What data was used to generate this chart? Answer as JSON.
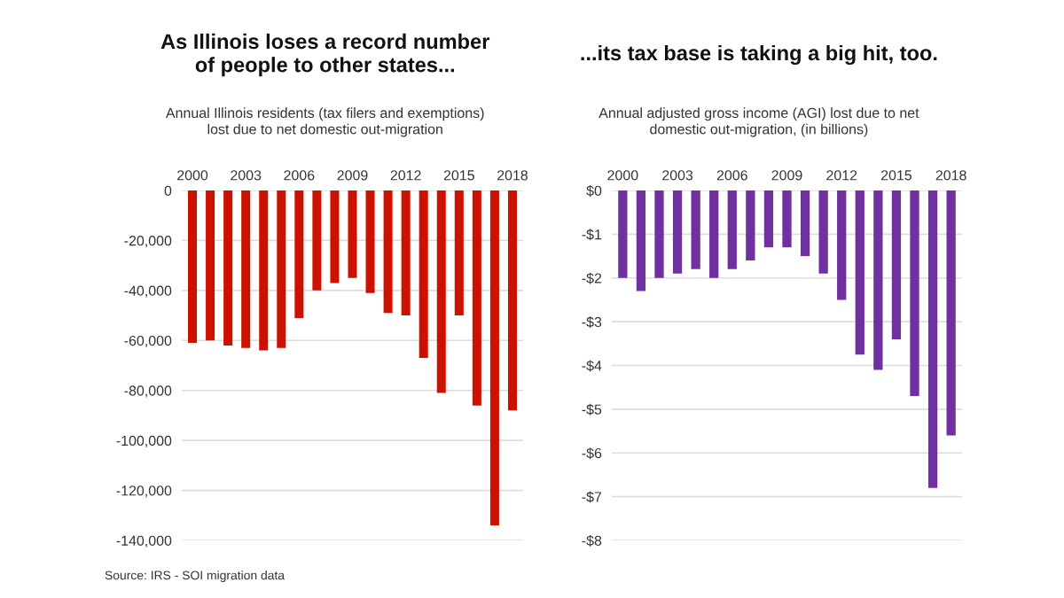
{
  "chart_data": [
    {
      "type": "bar",
      "title": "As Illinois loses a record number\nof people to other states...",
      "subtitle": "Annual Illinois residents (tax filers and exemptions)\nlost due to net domestic out-migration",
      "categories": [
        "2000",
        null,
        null,
        "2003",
        null,
        null,
        "2006",
        null,
        null,
        "2009",
        null,
        null,
        "2012",
        null,
        null,
        "2015",
        null,
        null,
        "2018"
      ],
      "values": [
        -61000,
        -60000,
        -62000,
        -63000,
        -64000,
        -63000,
        -51000,
        -40000,
        -37000,
        -35000,
        -41000,
        -49000,
        -50000,
        -67000,
        -81000,
        -50000,
        -86000,
        -134000,
        -88000
      ],
      "color": "#cc1100",
      "ylim": [
        -140000,
        0
      ],
      "yticks": [
        0,
        {
          "value": -20000,
          "label": "-20,000"
        },
        {
          "value": -40000,
          "label": "-40,000"
        },
        {
          "value": -60000,
          "label": "-60,000"
        },
        {
          "value": -80000,
          "label": "-80,000"
        },
        {
          "value": -100000,
          "label": "-100,000"
        },
        {
          "value": -120000,
          "label": "-120,000"
        },
        {
          "value": -140000,
          "label": "-140,000"
        }
      ],
      "grid": "y",
      "annotations": [
        "Source: IRS - SOI migration data"
      ]
    },
    {
      "type": "bar",
      "title": "...its tax base is taking a big hit, too.",
      "subtitle": "Annual adjusted gross income (AGI) lost due to net\ndomestic out-migration, (in billions)",
      "categories": [
        "2000",
        null,
        null,
        "2003",
        null,
        null,
        "2006",
        null,
        null,
        "2009",
        null,
        null,
        "2012",
        null,
        null,
        "2015",
        null,
        null,
        "2018"
      ],
      "values": [
        -2.0,
        -2.3,
        -2.0,
        -1.9,
        -1.8,
        -2.0,
        -1.8,
        -1.6,
        -1.3,
        -1.3,
        -1.5,
        -1.9,
        -2.5,
        -3.75,
        -4.1,
        -3.4,
        -4.7,
        -6.8,
        -5.6
      ],
      "color": "#7030a0",
      "ylim": [
        -8,
        0
      ],
      "yticks": [
        {
          "value": 0,
          "label": "$0"
        },
        {
          "value": -1,
          "label": "-$1"
        },
        {
          "value": -2,
          "label": "-$2"
        },
        {
          "value": -3,
          "label": "-$3"
        },
        {
          "value": -4,
          "label": "-$4"
        },
        {
          "value": -5,
          "label": "-$5"
        },
        {
          "value": -6,
          "label": "-$6"
        },
        {
          "value": -7,
          "label": "-$7"
        },
        {
          "value": -8,
          "label": "-$8"
        }
      ],
      "grid": "y"
    }
  ]
}
